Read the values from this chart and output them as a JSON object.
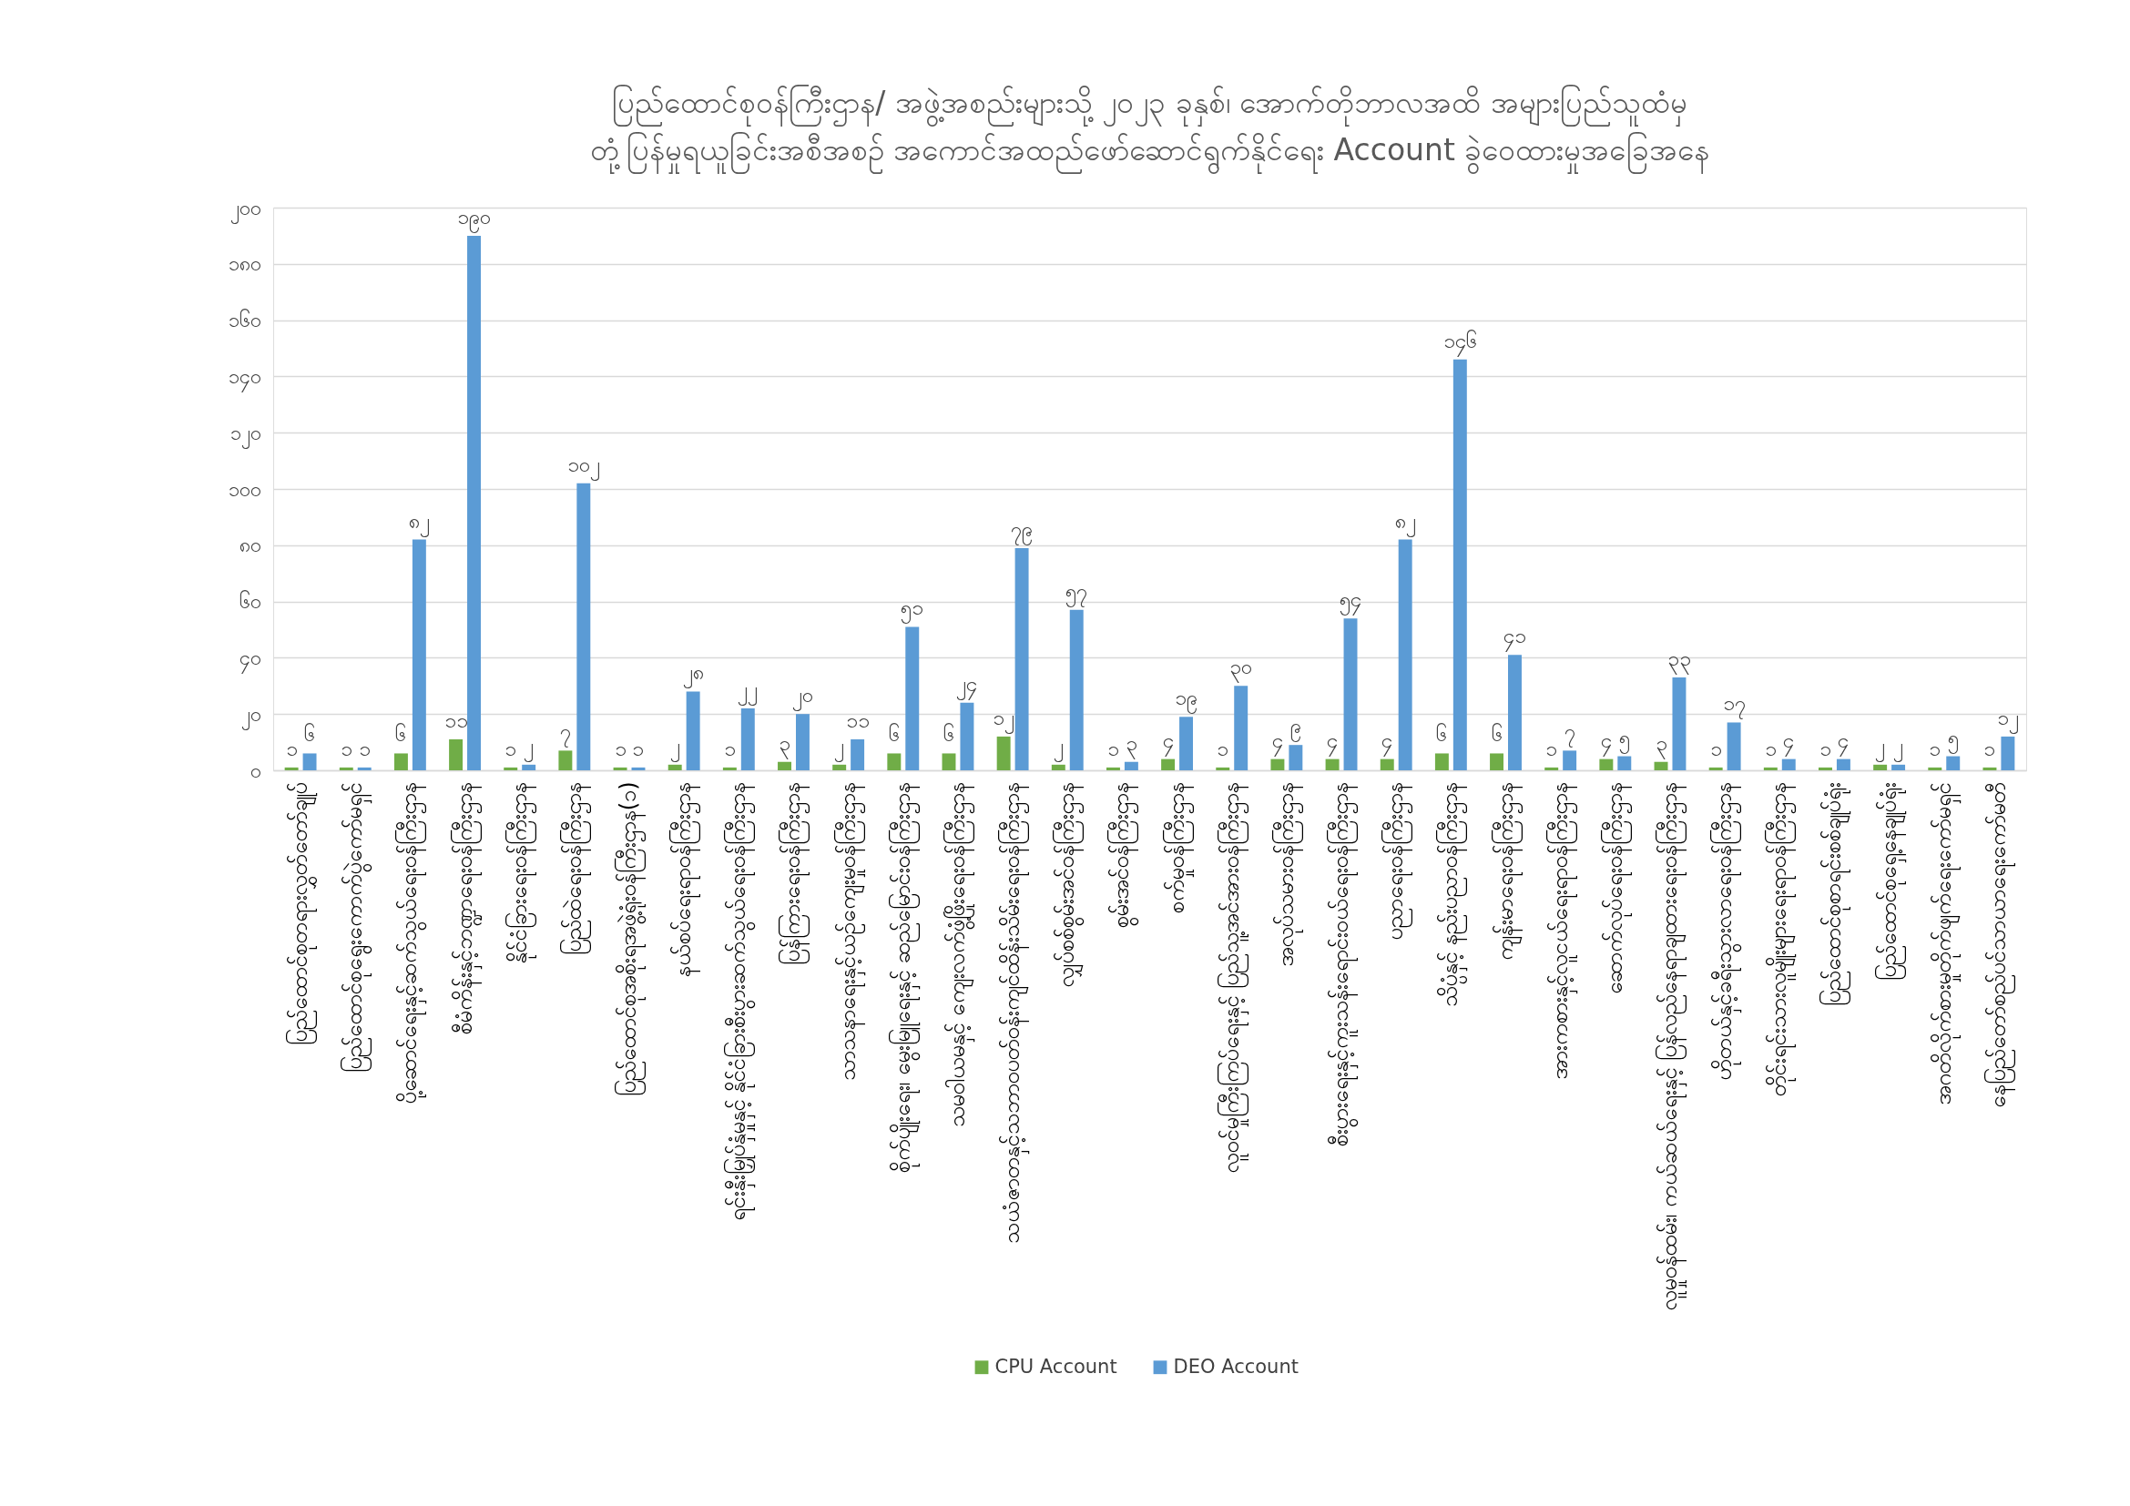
{
  "chart_data": {
    "type": "bar",
    "title": "ပြည်ထောင်စုဝန်ကြီးဌာန/ အဖွဲ့အစည်းများသို့ ၂၀၂၃ ခုနှစ်၊ အောက်တိုဘာလအထိ အများပြည်သူထံမှ\nတုံ့ပြန်မှုရယူခြင်းအစီအစဉ် အကောင်အထည်ဖော်ဆောင်ရွက်နိုင်ရေး Account ခွဲဝေထားမှုအခြေအနေ",
    "categories": [
      "ပြည်ထောင်စုတရားလွှတ်တော်ချုပ်",
      "ပြည်ထောင်စုရွေးကောက်ပွဲကော်မရှင်",
      "ပို့ဆောင်ရေးနှင့်ဆက်သွယ်ရေးဝန်ကြီးဌာန",
      "စီမံကိန်းနှင့်ဘဏ္ဍာရေးဝန်ကြီးဌာန",
      "နိုင်ငံခြားရေးဝန်ကြီးဌာန",
      "ပြည်ထဲရေးဝန်ကြီးဌာန",
      "ပြည်ထောင်စုအစိုးရအဖွဲ့ရုံးဝန်ကြီးဌာန(၁)",
      "နယ်စပ်ရေးရာဝန်ကြီးဌာန",
      "ရင်းနှီးမြှုပ်နှံမှုနှင့် နိုင်ငံခြားစီးပွားဆက်သွယ်ရေးဝန်ကြီးဌာန",
      "ပြန်ကြားရေးဝန်ကြီးဌာန",
      "သာသနာရေးနှင့်ယဉ်ကျေးမှုဝန်ကြီးဌာန",
      "စိုက်ပျိုးရေး၊ မွေးမြူရေးနှင့် ဆည်မြောင်းဝန်ကြီးဌာန",
      "သမဝါယမနှင့် ကျေးလက်ဖွံ့ဖြိုးရေးဝန်ကြီးဌာန",
      "သယံဇာတနှင့်သဘာဝပတ်ဝန်းကျင်ထိန်းသိမ်းရေးဝန်ကြီးဌာန",
      "လျှပ်စစ်စွမ်းအင်ဝန်ကြီးဌာန",
      "စွမ်းအင်ဝန်ကြီးဌာန",
      "စက်မှုဝန်ကြီးဌာန",
      "လူဝင်မှုကြီးကြပ်ရေးနှင့် ပြည်သူ့အင်အားဝန်ကြီးဌာန",
      "အလုပ်သမားဝန်ကြီးဌာန",
      "စီးပွားရေးနှင့်ကူးသန်းရောင်းဝယ်ရေးဝန်ကြီးဌာန",
      "ပညာရေးဝန်ကြီးဌာန",
      "သိပ္ပံနှင့် နည်းပညာဝန်ကြီးဌာန",
      "ကျန်းမာရေးဝန်ကြီးဌာန",
      "အားကစားနှင့်လူငယ်ရေးရာဝန်ကြီးဌာန",
      "ဆောက်လုပ်ရေးဝန်ကြီးဌာန",
      "လူမှုဝန်ထမ်း၊ ကယ်ဆယ်ရေးနှင့် ပြန်လည်နေရာချထားရေးဝန်ကြီးဌာန",
      "ဟိုတယ်နှင့်ခရီးသွားလာရေးဝန်ကြီးဌာန",
      "တိုင်းရင်းသားလူမျိုးများရေးရာဝန်ကြီးဌာန",
      "ပြည်ထောင်စုစာရင်းစစ်ချုပ်ရုံး",
      "ပြည်ထောင်စုရှေ့နေချုပ်ရုံး",
      "အဂတိလိုက်စားမှုတိုက်ဖျက်ရေးကော်မရှင်",
      "နေပြည်တော်စည်ပင်သာယာရေးကော်မတီ"
    ],
    "series": [
      {
        "name": "CPU Account",
        "color": "#70ad47",
        "values": [
          1,
          1,
          6,
          11,
          1,
          7,
          1,
          2,
          1,
          3,
          2,
          6,
          6,
          12,
          2,
          1,
          4,
          1,
          4,
          4,
          4,
          6,
          6,
          1,
          4,
          3,
          1,
          1,
          1,
          2,
          1,
          1
        ],
        "value_labels": [
          "၁",
          "၁",
          "၆",
          "၁၁",
          "၁",
          "၇",
          "၁",
          "၂",
          "၁",
          "၃",
          "၂",
          "၆",
          "၆",
          "၁၂",
          "၂",
          "၁",
          "၄",
          "၁",
          "၄",
          "၄",
          "၄",
          "၆",
          "၆",
          "၁",
          "၄",
          "၃",
          "၁",
          "၁",
          "၁",
          "၂",
          "၁",
          "၁"
        ]
      },
      {
        "name": "DEO Account",
        "color": "#5b9bd5",
        "values": [
          6,
          1,
          82,
          190,
          2,
          102,
          1,
          28,
          22,
          20,
          11,
          51,
          24,
          79,
          57,
          3,
          19,
          30,
          9,
          54,
          82,
          146,
          41,
          7,
          5,
          33,
          17,
          4,
          4,
          2,
          5,
          12
        ],
        "value_labels": [
          "၆",
          "၁",
          "၈၂",
          "၁၉၀",
          "၂",
          "၁၀၂",
          "၁",
          "၂၈",
          "၂၂",
          "၂၀",
          "၁၁",
          "၅၁",
          "၂၄",
          "၇၉",
          "၅၇",
          "၃",
          "၁၉",
          "၃၀",
          "၉",
          "၅၄",
          "၈၂",
          "၁၄၆",
          "၄၁",
          "၇",
          "၅",
          "၃၃",
          "၁၇",
          "၄",
          "၄",
          "၂",
          "၅",
          "၁၂"
        ]
      }
    ],
    "ylim": [
      0,
      200
    ],
    "yticks": [
      {
        "value": 0,
        "label": "၀"
      },
      {
        "value": 20,
        "label": "၂၀"
      },
      {
        "value": 40,
        "label": "၄၀"
      },
      {
        "value": 60,
        "label": "၆၀"
      },
      {
        "value": 80,
        "label": "၈၀"
      },
      {
        "value": 100,
        "label": "၁၀၀"
      },
      {
        "value": 120,
        "label": "၁၂၀"
      },
      {
        "value": 140,
        "label": "၁၄၀"
      },
      {
        "value": 160,
        "label": "၁၆၀"
      },
      {
        "value": 180,
        "label": "၁၈၀"
      },
      {
        "value": 200,
        "label": "၂၀၀"
      }
    ],
    "grid": "y",
    "legend": "bottom"
  }
}
